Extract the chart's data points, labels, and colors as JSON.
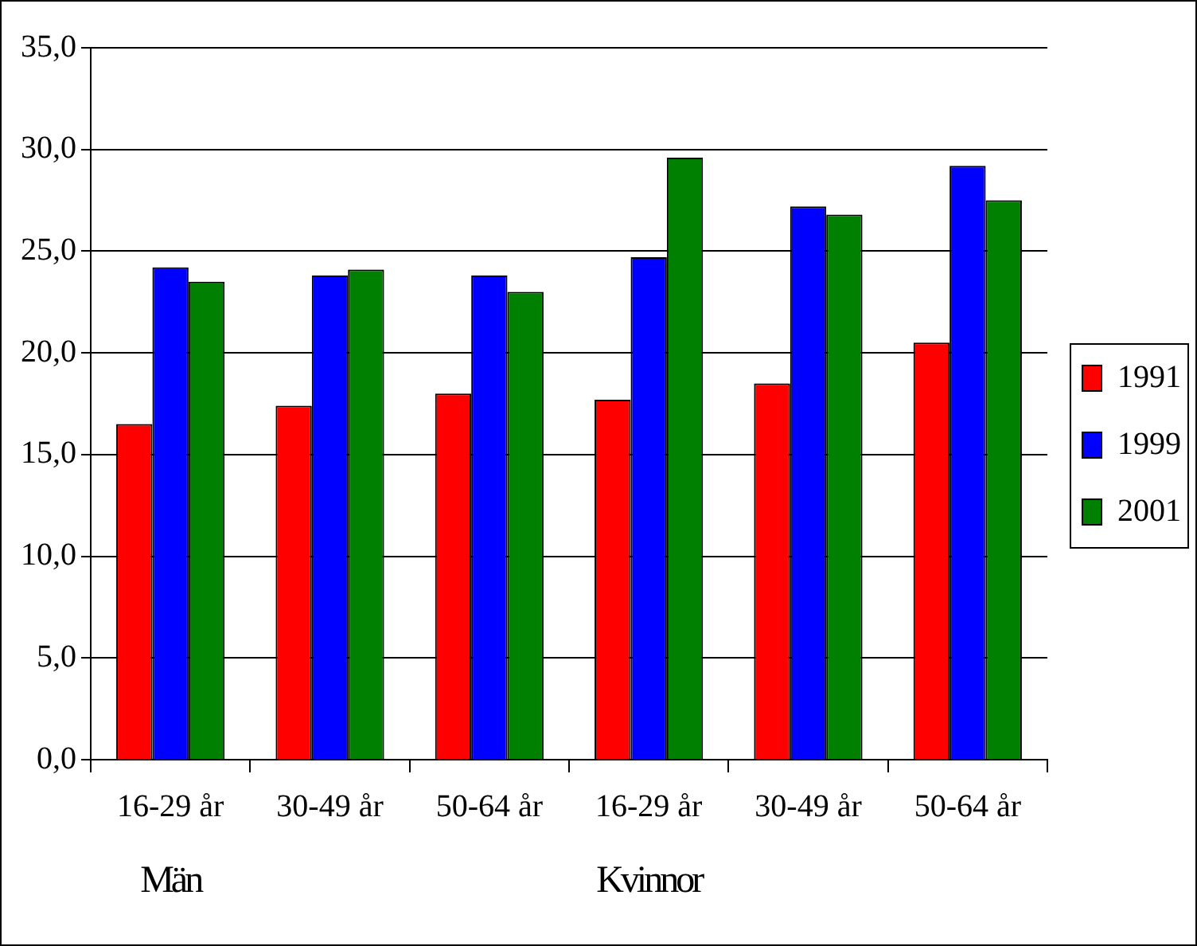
{
  "chart_data": {
    "type": "bar",
    "categories": [
      "16-29 år",
      "30-49 år",
      "50-64 år",
      "16-29 år",
      "30-49 år",
      "50-64 år"
    ],
    "series": [
      {
        "name": "1991",
        "color": "#ff0000",
        "values": [
          16.5,
          17.4,
          18.0,
          17.7,
          18.5,
          20.5
        ]
      },
      {
        "name": "1999",
        "color": "#0000ff",
        "values": [
          24.2,
          23.8,
          23.8,
          24.7,
          27.2,
          29.2
        ]
      },
      {
        "name": "2001",
        "color": "#008000",
        "values": [
          23.5,
          24.1,
          23.0,
          29.6,
          26.8,
          27.5
        ]
      }
    ],
    "annotations": [
      "Män",
      "Kvinnor"
    ],
    "ylim": [
      0,
      35
    ],
    "yticks": [
      {
        "value": 0,
        "label": "0,0"
      },
      {
        "value": 5,
        "label": "5,0"
      },
      {
        "value": 10,
        "label": "10,0"
      },
      {
        "value": 15,
        "label": "15,0"
      },
      {
        "value": 20,
        "label": "20,0"
      },
      {
        "value": 25,
        "label": "25,0"
      },
      {
        "value": 30,
        "label": "30,0"
      },
      {
        "value": 35,
        "label": "35,0"
      }
    ],
    "grid": "y",
    "legend": "right"
  }
}
